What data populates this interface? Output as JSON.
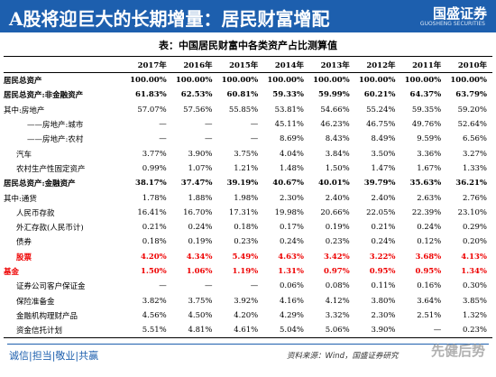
{
  "header": {
    "title": "A股将迎巨大的长期增量：居民财富增配",
    "logo": "国盛证券",
    "logo_sub": "GUOSHENG SECURITIES"
  },
  "table": {
    "caption": "表：中国居民财富中各类资产占比测算值",
    "columns": [
      "2017年",
      "2016年",
      "2015年",
      "2014年",
      "2013年",
      "2012年",
      "2011年",
      "2010年"
    ],
    "rows": [
      {
        "label": "居民总资产",
        "emphasis": "bold",
        "cells": [
          "100.00%",
          "100.00%",
          "100.00%",
          "100.00%",
          "100.00%",
          "100.00%",
          "100.00%",
          "100.00%"
        ]
      },
      {
        "label": "居民总资产:非金融资产",
        "emphasis": "bold",
        "cells": [
          "61.83%",
          "62.53%",
          "60.81%",
          "59.33%",
          "59.99%",
          "60.21%",
          "64.37%",
          "63.79%"
        ]
      },
      {
        "label": "其中:房地产",
        "cells": [
          "57.07%",
          "57.56%",
          "55.85%",
          "53.81%",
          "54.66%",
          "55.24%",
          "59.35%",
          "59.20%"
        ]
      },
      {
        "label": "——房地产:城市",
        "indent": 2,
        "cells": [
          "—",
          "—",
          "—",
          "45.11%",
          "46.23%",
          "46.75%",
          "49.76%",
          "52.64%"
        ]
      },
      {
        "label": "——房地产:农村",
        "indent": 2,
        "cells": [
          "—",
          "—",
          "—",
          "8.69%",
          "8.43%",
          "8.49%",
          "9.59%",
          "6.56%"
        ]
      },
      {
        "label": "汽车",
        "indent": 1,
        "cells": [
          "3.77%",
          "3.90%",
          "3.75%",
          "4.04%",
          "3.84%",
          "3.50%",
          "3.36%",
          "3.27%"
        ]
      },
      {
        "label": "农村生产性固定资产",
        "indent": 1,
        "cells": [
          "0.99%",
          "1.07%",
          "1.21%",
          "1.48%",
          "1.50%",
          "1.47%",
          "1.67%",
          "1.33%"
        ]
      },
      {
        "label": "居民总资产:金融资产",
        "emphasis": "bold",
        "cells": [
          "38.17%",
          "37.47%",
          "39.19%",
          "40.67%",
          "40.01%",
          "39.79%",
          "35.63%",
          "36.21%"
        ]
      },
      {
        "label": "其中:通货",
        "cells": [
          "1.78%",
          "1.88%",
          "1.98%",
          "2.30%",
          "2.40%",
          "2.40%",
          "2.63%",
          "2.76%"
        ]
      },
      {
        "label": "人民币存款",
        "indent": 1,
        "cells": [
          "16.41%",
          "16.70%",
          "17.31%",
          "19.98%",
          "20.66%",
          "22.05%",
          "22.39%",
          "23.10%"
        ]
      },
      {
        "label": "外汇存款(人民币计)",
        "indent": 1,
        "cells": [
          "0.21%",
          "0.24%",
          "0.18%",
          "0.17%",
          "0.19%",
          "0.21%",
          "0.24%",
          "0.29%"
        ]
      },
      {
        "label": "债券",
        "indent": 1,
        "cells": [
          "0.18%",
          "0.19%",
          "0.23%",
          "0.24%",
          "0.23%",
          "0.24%",
          "0.12%",
          "0.20%"
        ]
      },
      {
        "label": "股票",
        "indent": 1,
        "emphasis": "red",
        "cells": [
          "4.20%",
          "4.34%",
          "5.49%",
          "4.63%",
          "3.42%",
          "3.22%",
          "3.68%",
          "4.13%"
        ]
      },
      {
        "label": "基金",
        "emphasis": "red",
        "cells": [
          "1.50%",
          "1.06%",
          "1.19%",
          "1.31%",
          "0.97%",
          "0.95%",
          "0.95%",
          "1.34%"
        ]
      },
      {
        "label": "证券公司客户保证金",
        "indent": 1,
        "cells": [
          "—",
          "—",
          "—",
          "0.06%",
          "0.08%",
          "0.11%",
          "0.16%",
          "0.30%"
        ]
      },
      {
        "label": "保险准备金",
        "indent": 1,
        "cells": [
          "3.82%",
          "3.75%",
          "3.92%",
          "4.16%",
          "4.12%",
          "3.80%",
          "3.64%",
          "3.85%"
        ]
      },
      {
        "label": "金融机构理财产品",
        "indent": 1,
        "cells": [
          "4.56%",
          "4.50%",
          "4.20%",
          "4.29%",
          "3.32%",
          "2.30%",
          "2.51%",
          "1.32%"
        ]
      },
      {
        "label": "资金信托计划",
        "indent": 1,
        "cells": [
          "5.51%",
          "4.81%",
          "4.61%",
          "5.04%",
          "5.06%",
          "3.90%",
          "—",
          "0.23%"
        ]
      }
    ]
  },
  "footer": {
    "motto": "诚信|担当|敬业|共赢",
    "source": "资料来源：Wind，国盛证券研究",
    "watermark": "先健后势"
  }
}
